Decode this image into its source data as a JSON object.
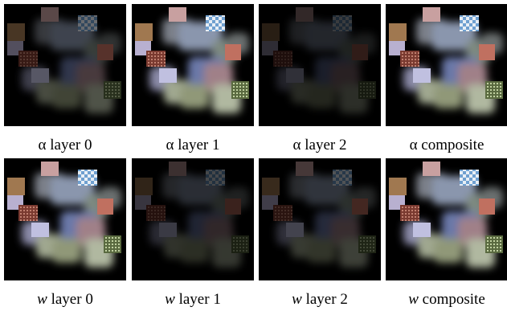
{
  "figure": {
    "rows": [
      {
        "captions": [
          {
            "symbol": "α",
            "label": "layer 0"
          },
          {
            "symbol": "α",
            "label": "layer 1"
          },
          {
            "symbol": "α",
            "label": "layer 2"
          },
          {
            "symbol": "α",
            "label": "composite"
          }
        ]
      },
      {
        "captions": [
          {
            "symbol": "w",
            "label": "layer 0"
          },
          {
            "symbol": "w",
            "label": "layer 1"
          },
          {
            "symbol": "w",
            "label": "layer 2"
          },
          {
            "symbol": "w",
            "label": "composite"
          }
        ]
      }
    ]
  }
}
